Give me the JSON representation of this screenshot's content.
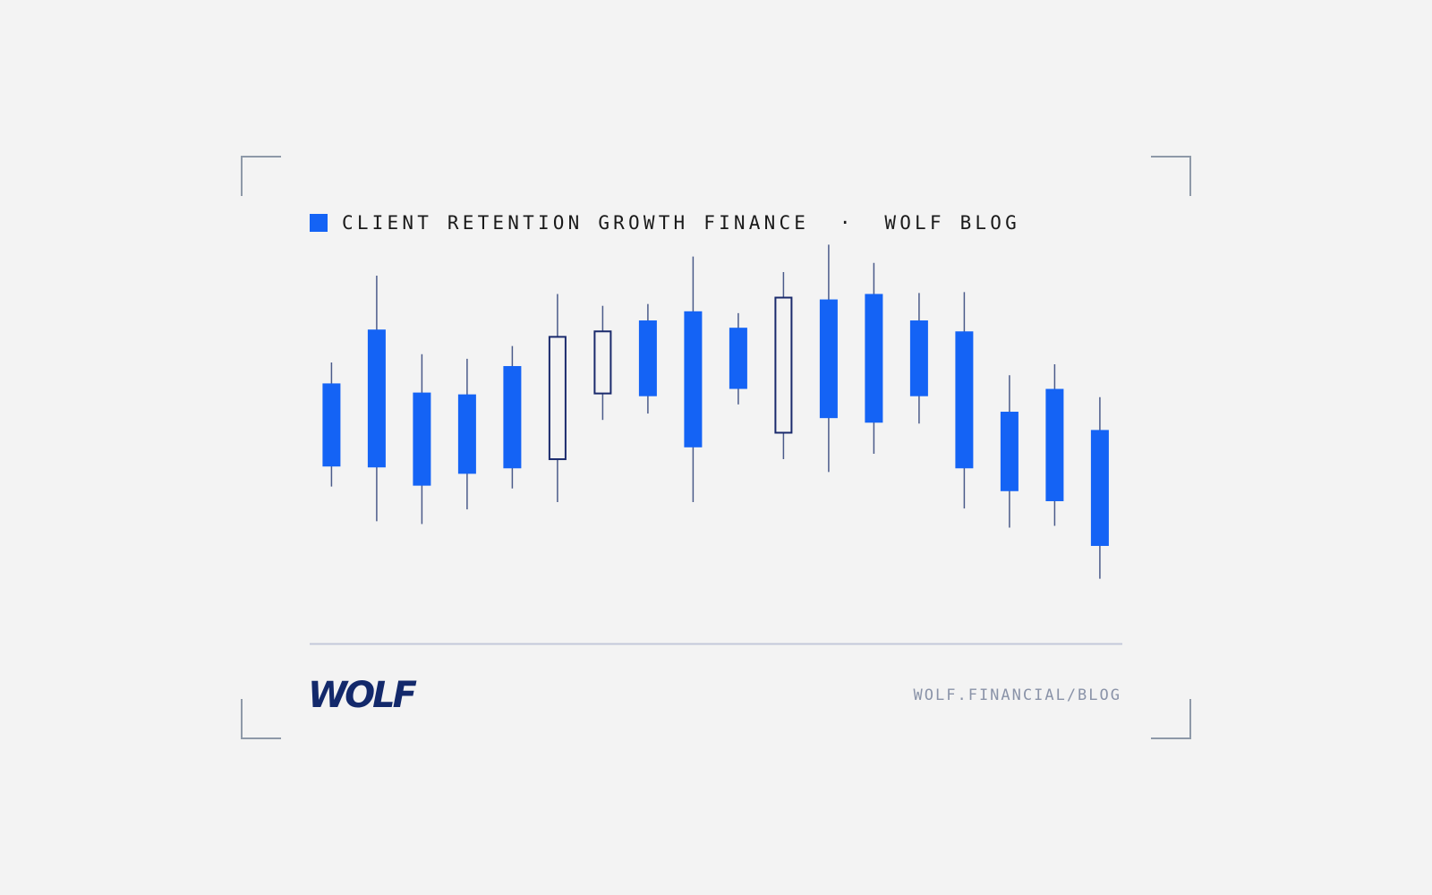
{
  "chart_data": {
    "type": "candlestick",
    "title": "CLIENT RETENTION GROWTH FINANCE  ·  WOLF BLOG",
    "open": [
      230,
      289,
      220,
      218,
      249,
      147,
      219,
      299,
      309,
      291,
      176,
      322,
      328,
      299,
      287,
      199,
      224,
      179
    ],
    "high": [
      253,
      348,
      262,
      257,
      271,
      328,
      315,
      317,
      369,
      307,
      352,
      382,
      362,
      329,
      330,
      239,
      251,
      215
    ],
    "low": [
      117,
      79,
      76,
      92,
      115,
      100,
      190,
      197,
      100,
      207,
      147,
      133,
      153,
      186,
      93,
      72,
      74,
      16
    ],
    "close": [
      139,
      138,
      118,
      131,
      137,
      281,
      287,
      216,
      160,
      224,
      324,
      192,
      187,
      216,
      137,
      112,
      101,
      52
    ],
    "ylim": [
      0,
      400
    ],
    "up_color": "#1a2a6c",
    "down_color": "#1463f5",
    "wick_color": "#4a5a8a"
  },
  "footer": {
    "logo": "WOLF",
    "url": "WOLF.FINANCIAL/BLOG"
  }
}
